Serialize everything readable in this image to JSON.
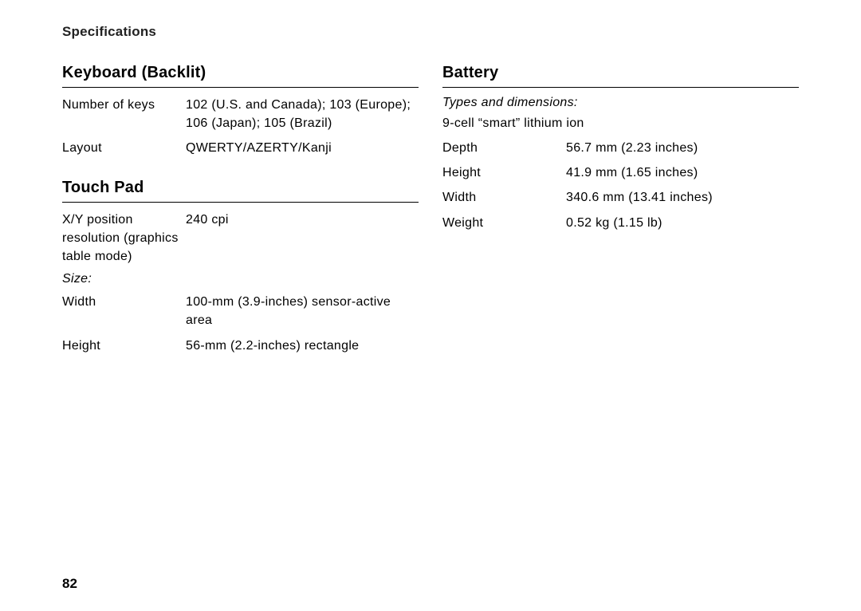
{
  "page": {
    "header": "Specifications",
    "number": "82"
  },
  "left": {
    "keyboard": {
      "title": "Keyboard (Backlit)",
      "rows": [
        {
          "label": "Number of keys",
          "value": "102 (U.S. and Canada); 103 (Europe); 106 (Japan); 105 (Brazil)"
        },
        {
          "label": "Layout",
          "value": "QWERTY/AZERTY/Kanji"
        }
      ]
    },
    "touchpad": {
      "title": "Touch Pad",
      "rows1": [
        {
          "label": "X/Y position resolution (graphics table mode)",
          "value": "240 cpi"
        }
      ],
      "size_subhead": "Size:",
      "rows2": [
        {
          "label": "Width",
          "value": "100-mm (3.9-inches) sensor-active area"
        },
        {
          "label": "Height",
          "value": "56-mm (2.2-inches) rectangle"
        }
      ]
    }
  },
  "right": {
    "battery": {
      "title": "Battery",
      "types_subhead": "Types and dimensions:",
      "type_desc": "9-cell “smart” lithium ion",
      "rows": [
        {
          "label": "Depth",
          "value": "56.7 mm (2.23 inches)"
        },
        {
          "label": "Height",
          "value": "41.9 mm (1.65 inches)"
        },
        {
          "label": "Width",
          "value": "340.6 mm (13.41 inches)"
        },
        {
          "label": "Weight",
          "value": "0.52 kg (1.15 lb)"
        }
      ]
    }
  }
}
